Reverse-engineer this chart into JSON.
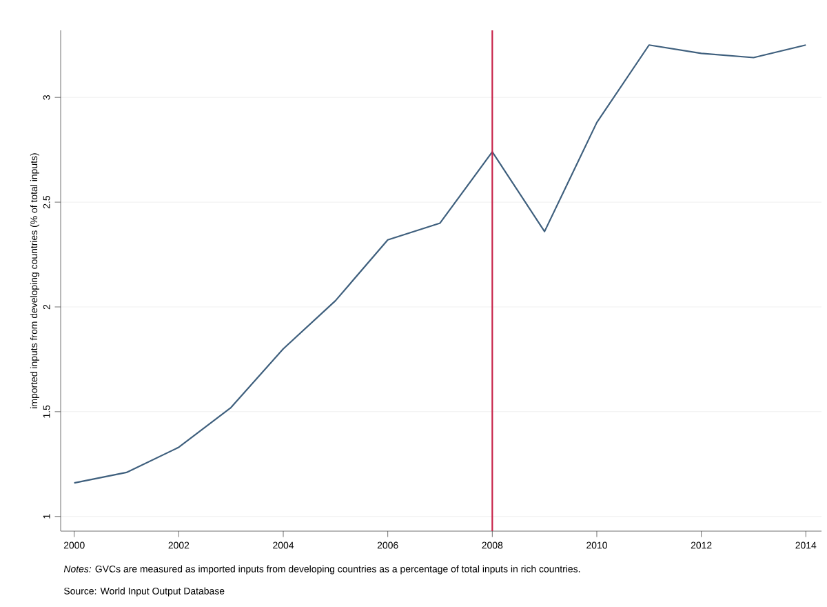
{
  "chart_data": {
    "type": "line",
    "ylabel": "imported inputs from developing countries (% of total inputs)",
    "x": [
      2000,
      2001,
      2002,
      2003,
      2004,
      2005,
      2006,
      2007,
      2008,
      2009,
      2010,
      2011,
      2012,
      2013,
      2014
    ],
    "series": [
      {
        "color": "#3e5f7d",
        "values": [
          1.16,
          1.21,
          1.33,
          1.52,
          1.8,
          2.03,
          2.32,
          2.4,
          2.74,
          2.36,
          2.88,
          3.25,
          3.21,
          3.19,
          3.25
        ]
      }
    ],
    "xlim": [
      1999.74,
      2014.3
    ],
    "ylim": [
      0.93,
      3.32
    ],
    "xticks": [
      2000,
      2002,
      2004,
      2006,
      2008,
      2010,
      2012,
      2014
    ],
    "yticks": [
      1,
      1.5,
      2,
      2.5,
      3
    ],
    "grid": "y",
    "marker": "none",
    "line_style": "solid",
    "ref_lines": [
      {
        "axis": "x",
        "value": 2008,
        "color": "#c8234a"
      }
    ],
    "annotations": [
      "*Notes:* GVCs are measured as imported inputs from developing countries as a percentage of total inputs in rich countries.",
      "Source: World Input Output Database"
    ]
  }
}
